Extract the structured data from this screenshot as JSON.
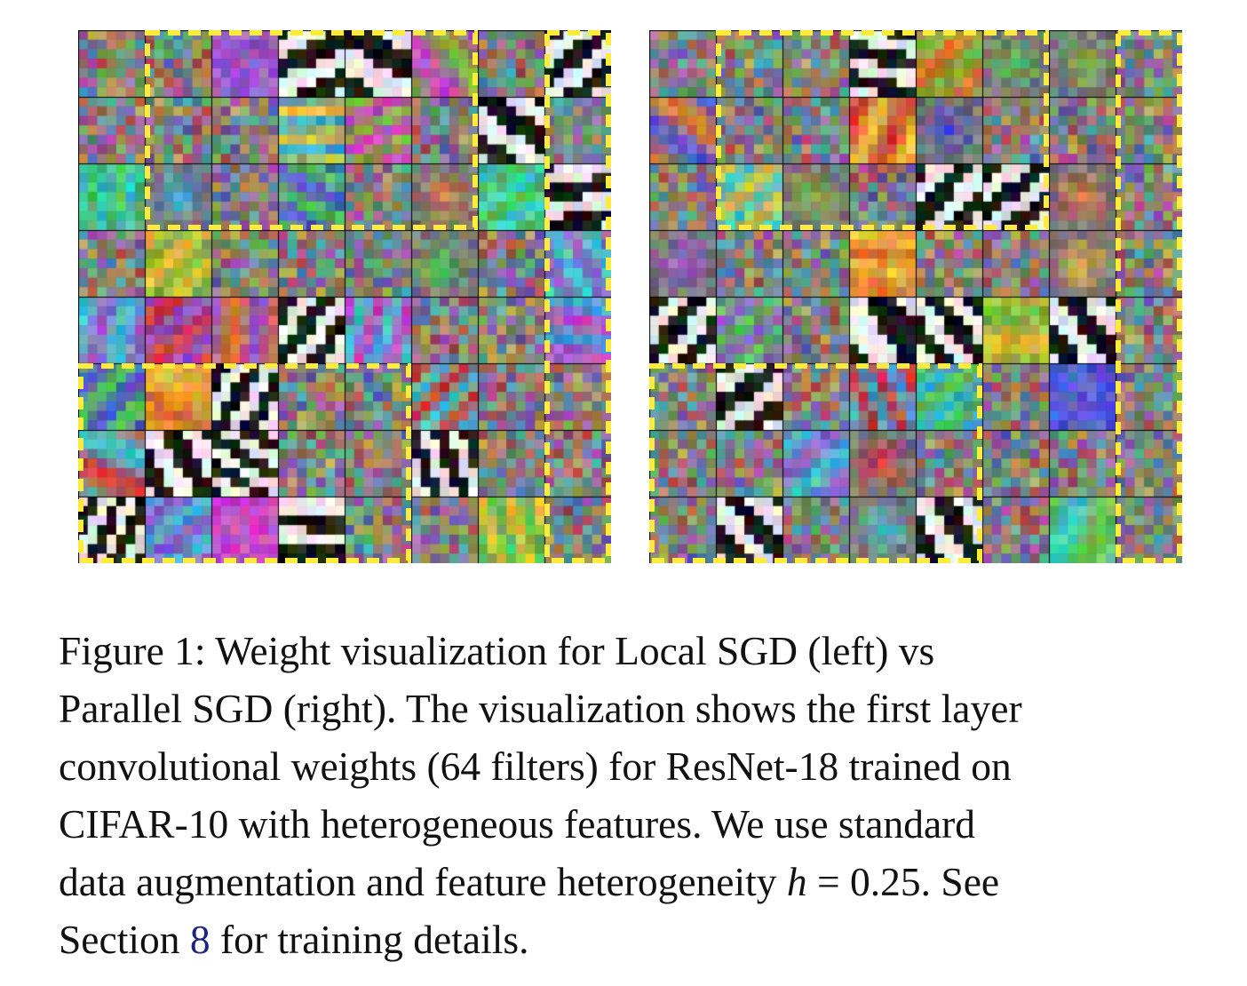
{
  "figure": {
    "grid": {
      "rows": 8,
      "cols": 8
    },
    "highlight_color": "#ffeb3b",
    "panels": [
      {
        "id": "local-sgd",
        "highlight_regions": [
          {
            "row_start": 0,
            "row_end": 2,
            "col_start": 1,
            "col_end": 5
          },
          {
            "row_start": 0,
            "row_end": 7,
            "col_start": 7,
            "col_end": 7
          },
          {
            "row_start": 5,
            "row_end": 7,
            "col_start": 0,
            "col_end": 4
          }
        ]
      },
      {
        "id": "parallel-sgd",
        "highlight_regions": [
          {
            "row_start": 0,
            "row_end": 2,
            "col_start": 1,
            "col_end": 5
          },
          {
            "row_start": 0,
            "row_end": 7,
            "col_start": 7,
            "col_end": 7
          },
          {
            "row_start": 5,
            "row_end": 7,
            "col_start": 0,
            "col_end": 4
          }
        ]
      }
    ]
  },
  "caption": {
    "line1": "Figure 1:  Weight visualization for Local SGD (left) vs",
    "line2": "Parallel SGD (right). The visualization shows the first layer",
    "line3": "convolutional weights (64 filters) for ResNet-18 trained on",
    "line4": "CIFAR-10 with heterogeneous features.  We use standard",
    "line5_a": "data augmentation and feature heterogeneity ",
    "line5_math_var": "h",
    "line5_math_rest": " = 0.25. See",
    "line6_a": "Section ",
    "line6_ref": "8",
    "line6_b": " for training details."
  }
}
